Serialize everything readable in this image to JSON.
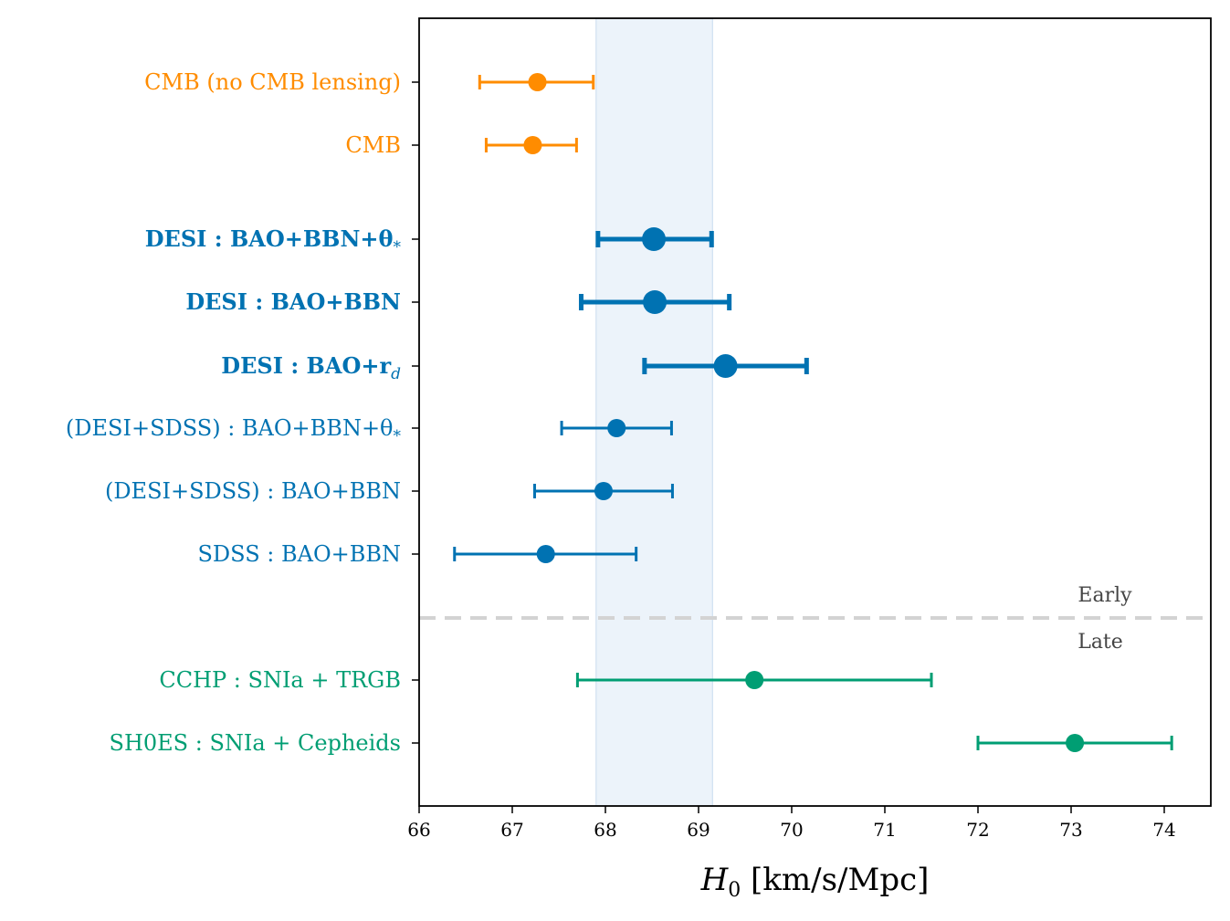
{
  "chart_data": {
    "type": "scatter",
    "subtype": "forest-plot-errorbars",
    "title": "",
    "xlabel": {
      "symbol": "H",
      "subscript": "0",
      "units": "[km/s/Mpc]"
    },
    "ylabel": "",
    "xlim": [
      66,
      74.5
    ],
    "xticks": [
      66,
      67,
      68,
      69,
      70,
      71,
      72,
      73,
      74
    ],
    "grid": false,
    "legend": "none",
    "colors": {
      "cmb": "#ff8c00",
      "desi": "#0072b2",
      "distance_ladder": "#009e73",
      "band": "#dde9f5",
      "divider": "#d3d3d3"
    },
    "band": {
      "xmin": 67.9,
      "xmax": 69.15
    },
    "region_labels": {
      "early": "Early",
      "late": "Late"
    },
    "rows": [
      {
        "label": "CMB (no CMB lensing)",
        "group": "cmb",
        "bold": false,
        "value": 67.27,
        "lower": 66.65,
        "upper": 67.87
      },
      {
        "label": "CMB",
        "group": "cmb",
        "bold": false,
        "value": 67.22,
        "lower": 66.72,
        "upper": 67.69
      },
      {
        "label": "DESI : BAO+BBN+θ",
        "label_math": "*",
        "group": "desi",
        "bold": true,
        "value": 68.52,
        "lower": 67.92,
        "upper": 69.14
      },
      {
        "label": "DESI : BAO+BBN",
        "group": "desi",
        "bold": true,
        "value": 68.53,
        "lower": 67.74,
        "upper": 69.33
      },
      {
        "label": "DESI : BAO+r",
        "label_math": "d",
        "group": "desi",
        "bold": true,
        "value": 69.29,
        "lower": 68.42,
        "upper": 70.16
      },
      {
        "label": "(DESI+SDSS) : BAO+BBN+θ",
        "label_math": "*",
        "group": "desi",
        "bold": false,
        "value": 68.12,
        "lower": 67.53,
        "upper": 68.71
      },
      {
        "label": "(DESI+SDSS) : BAO+BBN",
        "group": "desi",
        "bold": false,
        "value": 67.98,
        "lower": 67.24,
        "upper": 68.72
      },
      {
        "label": "SDSS : BAO+BBN",
        "group": "desi",
        "bold": false,
        "value": 67.36,
        "lower": 66.38,
        "upper": 68.33
      },
      {
        "label": "CCHP : SNIa + TRGB",
        "group": "distance_ladder",
        "bold": false,
        "value": 69.6,
        "lower": 67.7,
        "upper": 71.5
      },
      {
        "label": "SH0ES : SNIa + Cepheids",
        "group": "distance_ladder",
        "bold": false,
        "value": 73.04,
        "lower": 72.0,
        "upper": 74.08
      }
    ]
  }
}
